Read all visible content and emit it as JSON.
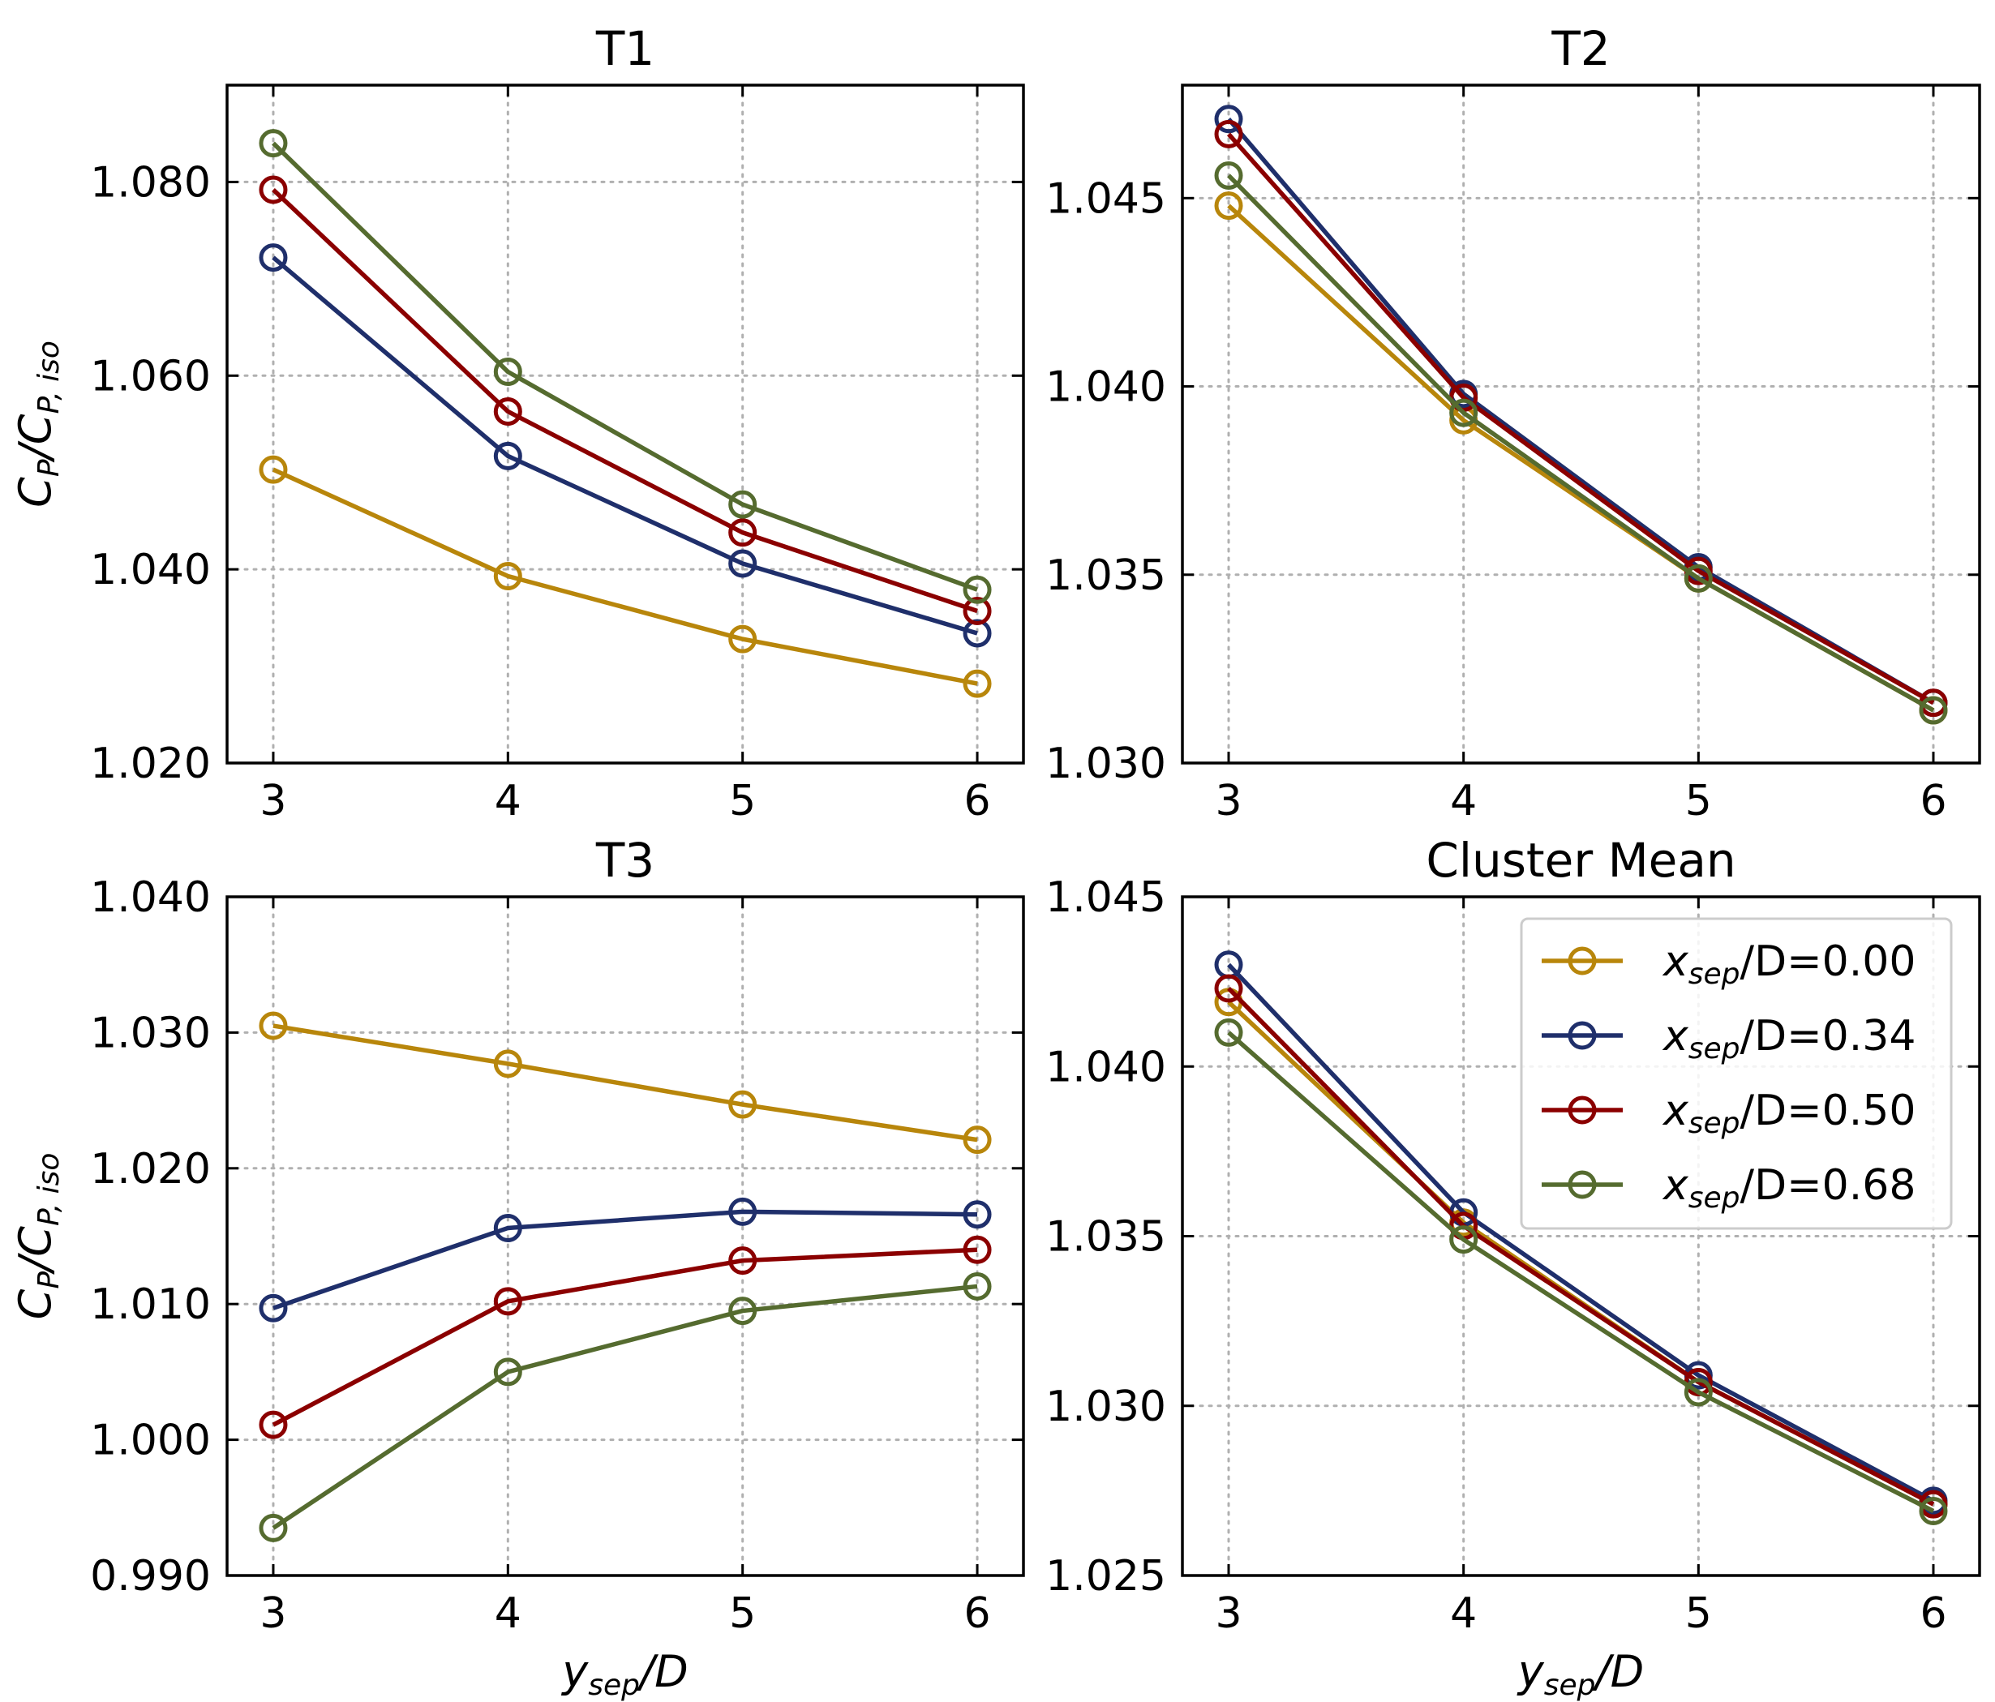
{
  "chart_data": [
    {
      "type": "line",
      "title": "T1",
      "x": [
        3,
        4,
        5,
        6
      ],
      "xticks": [
        "3",
        "4",
        "5",
        "6"
      ],
      "ylim": [
        1.02,
        1.09
      ],
      "yticks": [
        "1.020",
        "1.040",
        "1.060",
        "1.080"
      ],
      "ylabel": {
        "main": "C",
        "sub1": "P",
        "mid": "/C",
        "sub2": "P, iso"
      },
      "xlabel": null,
      "grid": true,
      "series": [
        {
          "name": "x_sep/D=0.00",
          "values": [
            1.0503,
            1.0393,
            1.0328,
            1.0282
          ]
        },
        {
          "name": "x_sep/D=0.34",
          "values": [
            1.0722,
            1.0517,
            1.0406,
            1.0334
          ]
        },
        {
          "name": "x_sep/D=0.50",
          "values": [
            1.0792,
            1.0563,
            1.0438,
            1.0357
          ]
        },
        {
          "name": "x_sep/D=0.68",
          "values": [
            1.084,
            1.0604,
            1.0467,
            1.0379
          ]
        }
      ]
    },
    {
      "type": "line",
      "title": "T2",
      "x": [
        3,
        4,
        5,
        6
      ],
      "xticks": [
        "3",
        "4",
        "5",
        "6"
      ],
      "ylim": [
        1.03,
        1.048
      ],
      "yticks": [
        "1.030",
        "1.035",
        "1.040",
        "1.045"
      ],
      "ylabel": null,
      "xlabel": null,
      "grid": true,
      "series": [
        {
          "name": "x_sep/D=0.00",
          "values": [
            1.0448,
            1.0391,
            1.0349,
            1.0314
          ]
        },
        {
          "name": "x_sep/D=0.34",
          "values": [
            1.0471,
            1.0398,
            1.0352,
            1.0316
          ]
        },
        {
          "name": "x_sep/D=0.50",
          "values": [
            1.0467,
            1.0397,
            1.0351,
            1.0316
          ]
        },
        {
          "name": "x_sep/D=0.68",
          "values": [
            1.0456,
            1.0393,
            1.0349,
            1.0314
          ]
        }
      ]
    },
    {
      "type": "line",
      "title": "T3",
      "x": [
        3,
        4,
        5,
        6
      ],
      "xticks": [
        "3",
        "4",
        "5",
        "6"
      ],
      "ylim": [
        0.99,
        1.04
      ],
      "yticks": [
        "0.990",
        "1.000",
        "1.010",
        "1.020",
        "1.030",
        "1.040"
      ],
      "ylabel": {
        "main": "C",
        "sub1": "P",
        "mid": "/C",
        "sub2": "P, iso"
      },
      "xlabel": {
        "main": "y",
        "sub": "sep",
        "rest": "/D"
      },
      "grid": true,
      "series": [
        {
          "name": "x_sep/D=0.00",
          "values": [
            1.0305,
            1.0277,
            1.0247,
            1.0221
          ]
        },
        {
          "name": "x_sep/D=0.34",
          "values": [
            1.0097,
            1.0156,
            1.0168,
            1.0166
          ]
        },
        {
          "name": "x_sep/D=0.50",
          "values": [
            1.0011,
            1.0102,
            1.0132,
            1.014
          ]
        },
        {
          "name": "x_sep/D=0.68",
          "values": [
            0.9935,
            1.005,
            1.0095,
            1.0113
          ]
        }
      ]
    },
    {
      "type": "line",
      "title": "Cluster Mean",
      "x": [
        3,
        4,
        5,
        6
      ],
      "xticks": [
        "3",
        "4",
        "5",
        "6"
      ],
      "ylim": [
        1.025,
        1.045
      ],
      "yticks": [
        "1.025",
        "1.030",
        "1.035",
        "1.040",
        "1.045"
      ],
      "ylabel": null,
      "xlabel": {
        "main": "y",
        "sub": "sep",
        "rest": "/D"
      },
      "grid": true,
      "legend": "top-right",
      "series": [
        {
          "name": "x_sep/D=0.00",
          "values": [
            1.0419,
            1.0354,
            1.0307,
            1.0271
          ]
        },
        {
          "name": "x_sep/D=0.34",
          "values": [
            1.043,
            1.0357,
            1.0309,
            1.0272
          ]
        },
        {
          "name": "x_sep/D=0.50",
          "values": [
            1.0423,
            1.0353,
            1.0307,
            1.0271
          ]
        },
        {
          "name": "x_sep/D=0.68",
          "values": [
            1.041,
            1.0349,
            1.0304,
            1.0269
          ]
        }
      ]
    }
  ],
  "legend": [
    {
      "main": "x",
      "sub": "sep",
      "rest": "/D=0.00",
      "color": "#b8860b"
    },
    {
      "main": "x",
      "sub": "sep",
      "rest": "/D=0.34",
      "color": "#1f2f6b"
    },
    {
      "main": "x",
      "sub": "sep",
      "rest": "/D=0.50",
      "color": "#8b0000"
    },
    {
      "main": "x",
      "sub": "sep",
      "rest": "/D=0.68",
      "color": "#556b2f"
    }
  ],
  "colors": [
    "#b8860b",
    "#1f2f6b",
    "#8b0000",
    "#556b2f"
  ]
}
